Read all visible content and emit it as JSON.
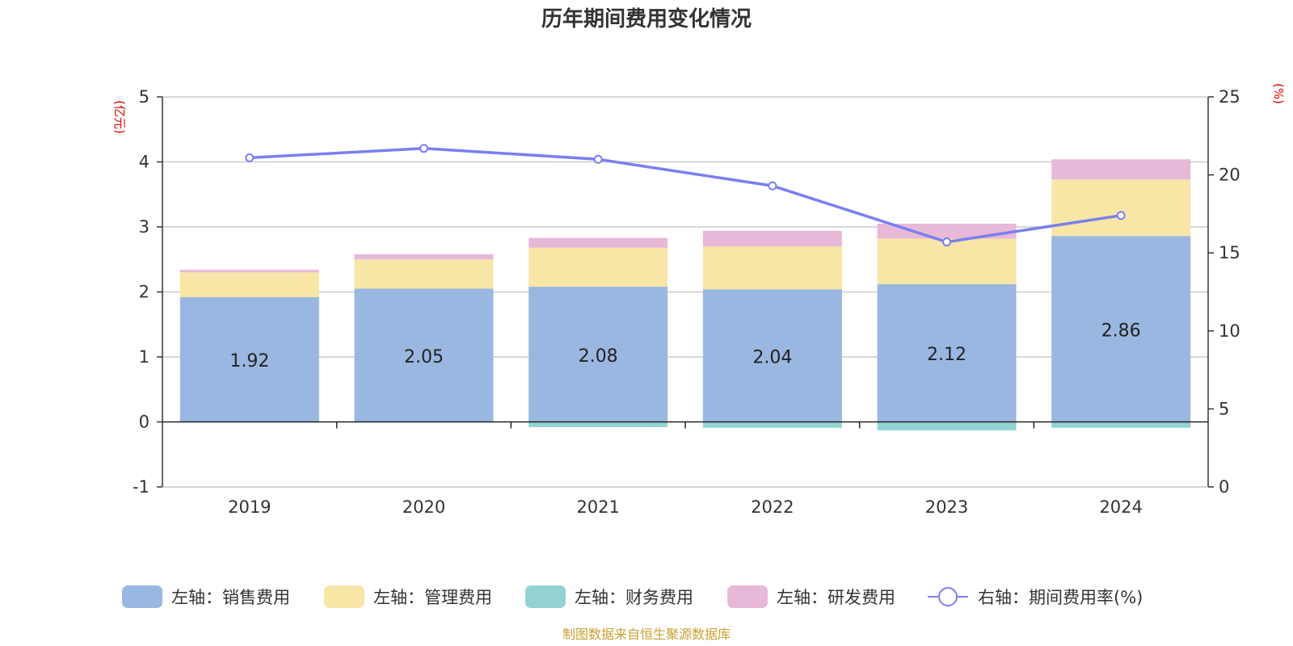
{
  "title": "历年期间费用变化情况",
  "footer": "制图数据来自恒生聚源数据库",
  "units": {
    "left": "(亿元)",
    "right": "(%)"
  },
  "chart_data": {
    "type": "bar",
    "stacked": true,
    "categories": [
      "2019",
      "2020",
      "2021",
      "2022",
      "2023",
      "2024"
    ],
    "y_left": {
      "ylim": [
        -1,
        5
      ],
      "ticks": [
        "-1",
        "0",
        "1",
        "2",
        "3",
        "4",
        "5"
      ]
    },
    "y_right": {
      "ylim": [
        0,
        25
      ],
      "ticks": [
        "0",
        "5",
        "10",
        "15",
        "20",
        "25"
      ]
    },
    "grid": true,
    "legend_position": "bottom",
    "series": [
      {
        "name": "左轴：销售费用",
        "type": "bar",
        "axis": "left",
        "color": "#9ab7e1",
        "values": [
          1.92,
          2.05,
          2.08,
          2.04,
          2.12,
          2.86
        ],
        "labels": [
          "1.92",
          "2.05",
          "2.08",
          "2.04",
          "2.12",
          "2.86"
        ]
      },
      {
        "name": "左轴：管理费用",
        "type": "bar",
        "axis": "left",
        "color": "#f7e6a6",
        "values": [
          0.38,
          0.45,
          0.6,
          0.66,
          0.7,
          0.87
        ]
      },
      {
        "name": "左轴：财务费用",
        "type": "bar",
        "axis": "left",
        "color": "#93d3d3",
        "values": [
          -0.01,
          -0.01,
          -0.08,
          -0.09,
          -0.13,
          -0.09
        ]
      },
      {
        "name": "左轴：研发费用",
        "type": "bar",
        "axis": "left",
        "color": "#e8b8d8",
        "values": [
          0.04,
          0.08,
          0.15,
          0.24,
          0.23,
          0.31
        ]
      },
      {
        "name": "右轴：期间费用率(%)",
        "type": "line",
        "axis": "right",
        "color": "#7b7ff0",
        "values": [
          21.1,
          21.7,
          21.0,
          19.3,
          15.7,
          17.4
        ]
      }
    ]
  }
}
